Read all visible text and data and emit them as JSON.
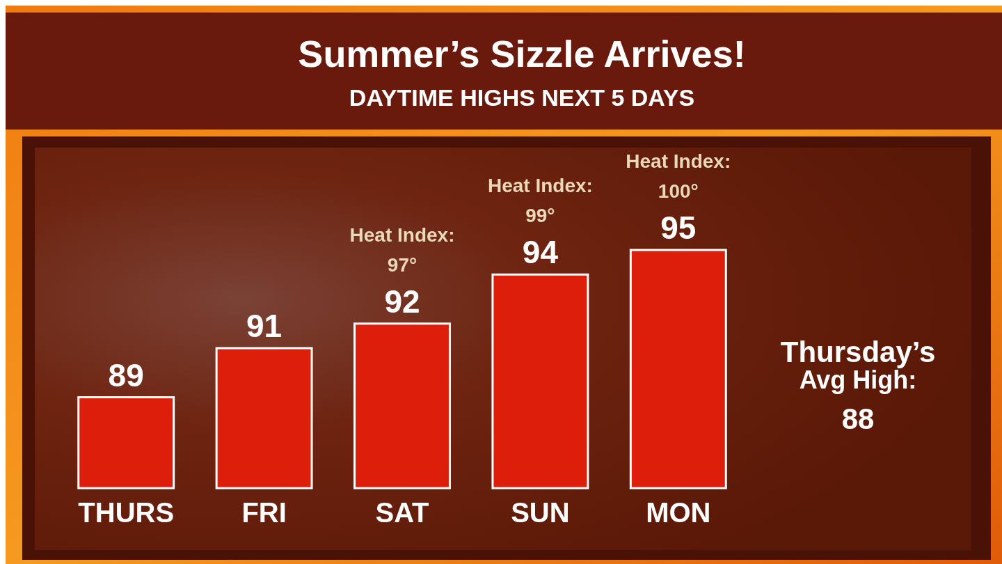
{
  "chart_data": {
    "type": "bar",
    "title": "Summer’s Sizzle Arrives!",
    "subtitle": "DAYTIME HIGHS NEXT 5 DAYS",
    "categories": [
      "THURS",
      "FRI",
      "SAT",
      "SUN",
      "MON"
    ],
    "values": [
      89,
      91,
      92,
      94,
      95
    ],
    "color": "#dc1e0a",
    "ylim": [
      85.3,
      95
    ],
    "data_labels": true,
    "annotations": [
      "Heat Index:\n97°",
      "Heat Index:\n99°",
      "Heat Index:\n100°",
      "Thursday’s\nAvg High:\n88"
    ]
  }
}
